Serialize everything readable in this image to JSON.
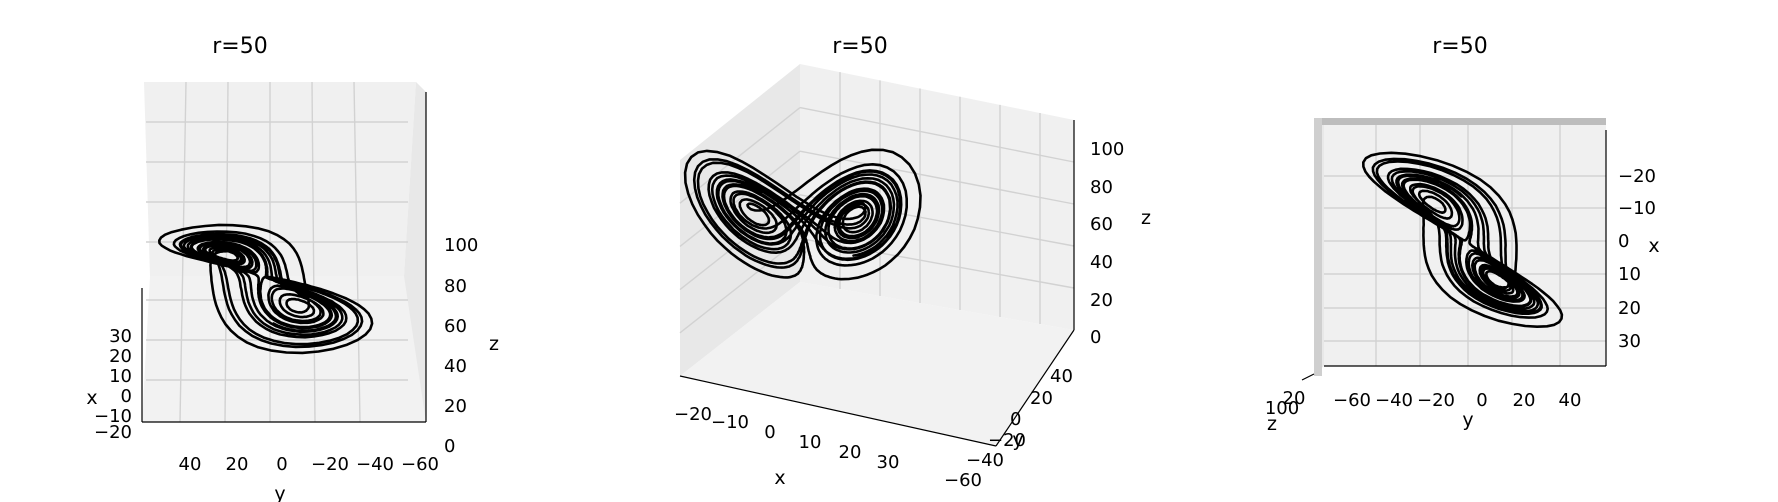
{
  "chart_data": [
    {
      "type": "line",
      "title": "r=50",
      "xlabel": "x",
      "ylabel": "y",
      "zlabel": "z",
      "xticks": [
        "30",
        "20",
        "10",
        "0",
        "−10",
        "−20"
      ],
      "yticks": [
        "40",
        "20",
        "0",
        "−20",
        "−40",
        "−60"
      ],
      "zticks": [
        "100",
        "80",
        "60",
        "40",
        "20",
        "0"
      ],
      "xlim": [
        -20,
        35
      ],
      "ylim": [
        -60,
        50
      ],
      "zlim": [
        0,
        110
      ],
      "grid": true,
      "series": [
        {
          "points": []
        }
      ]
    },
    {
      "type": "line",
      "title": "r=50",
      "xlabel": "x",
      "ylabel": "y",
      "zlabel": "z",
      "xticks": [
        "−20",
        "−10",
        "0",
        "10",
        "20",
        "30"
      ],
      "yticks": [
        "40",
        "20",
        "0",
        "−20",
        "−40",
        "−60"
      ],
      "zticks": [
        "100",
        "80",
        "60",
        "40",
        "20",
        "0"
      ],
      "xlim": [
        -25,
        35
      ],
      "ylim": [
        -60,
        50
      ],
      "zlim": [
        0,
        110
      ],
      "grid": true,
      "series": [
        {
          "points": []
        }
      ]
    },
    {
      "type": "line",
      "title": "r=50",
      "xlabel": "x",
      "ylabel": "y",
      "zlabel": "z",
      "xticks": [
        "−20",
        "−10",
        "0",
        "10",
        "20",
        "30"
      ],
      "yticks": [
        "−60",
        "−40",
        "−20",
        "0",
        "20",
        "40"
      ],
      "zticks": [
        "100",
        "20"
      ],
      "xlim": [
        -25,
        35
      ],
      "ylim": [
        -60,
        50
      ],
      "zlim": [
        0,
        110
      ],
      "grid": true,
      "series": [
        {
          "points": []
        }
      ]
    }
  ]
}
